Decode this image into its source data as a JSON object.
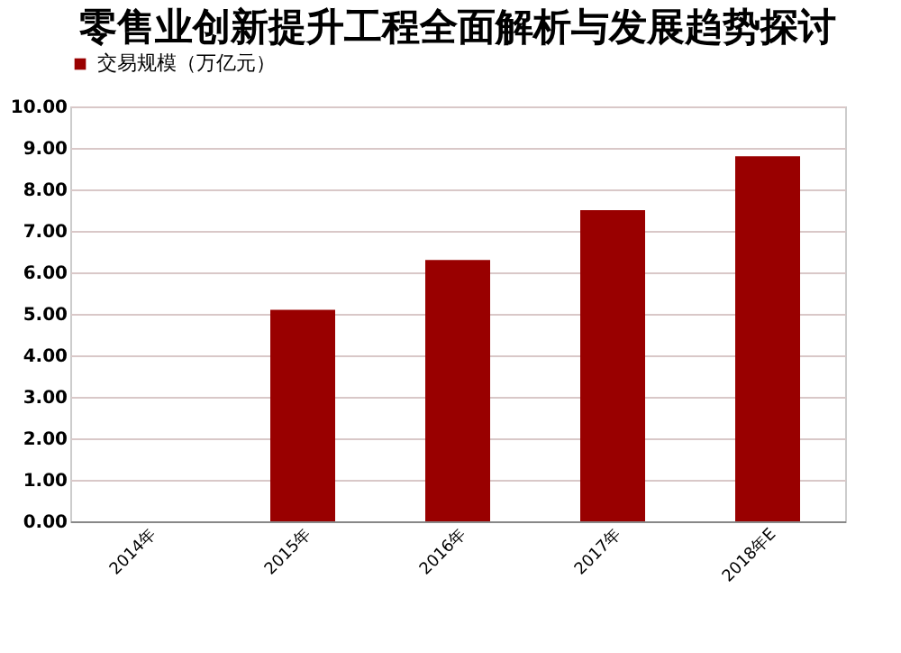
{
  "chart_data": {
    "type": "bar",
    "title": "零售业创新提升工程全面解析与发展趋势探讨",
    "categories": [
      "2014年",
      "2015年",
      "2016年",
      "2017年",
      "2018年E"
    ],
    "series": [
      {
        "name": "交易规模（万亿元）",
        "color": "#990000",
        "values": [
          null,
          5.1,
          6.3,
          7.5,
          8.8
        ]
      }
    ],
    "ylim": [
      0,
      10
    ],
    "yticks": [
      {
        "value": 0,
        "label": "0.00"
      },
      {
        "value": 1,
        "label": "1.00"
      },
      {
        "value": 2,
        "label": "2.00"
      },
      {
        "value": 3,
        "label": "3.00"
      },
      {
        "value": 4,
        "label": "4.00"
      },
      {
        "value": 5,
        "label": "5.00"
      },
      {
        "value": 6,
        "label": "6.00"
      },
      {
        "value": 7,
        "label": "7.00"
      },
      {
        "value": 8,
        "label": "8.00"
      },
      {
        "value": 9,
        "label": "9.00"
      },
      {
        "value": 10,
        "label": "10.00"
      }
    ],
    "grid": "y",
    "legend": "top"
  }
}
